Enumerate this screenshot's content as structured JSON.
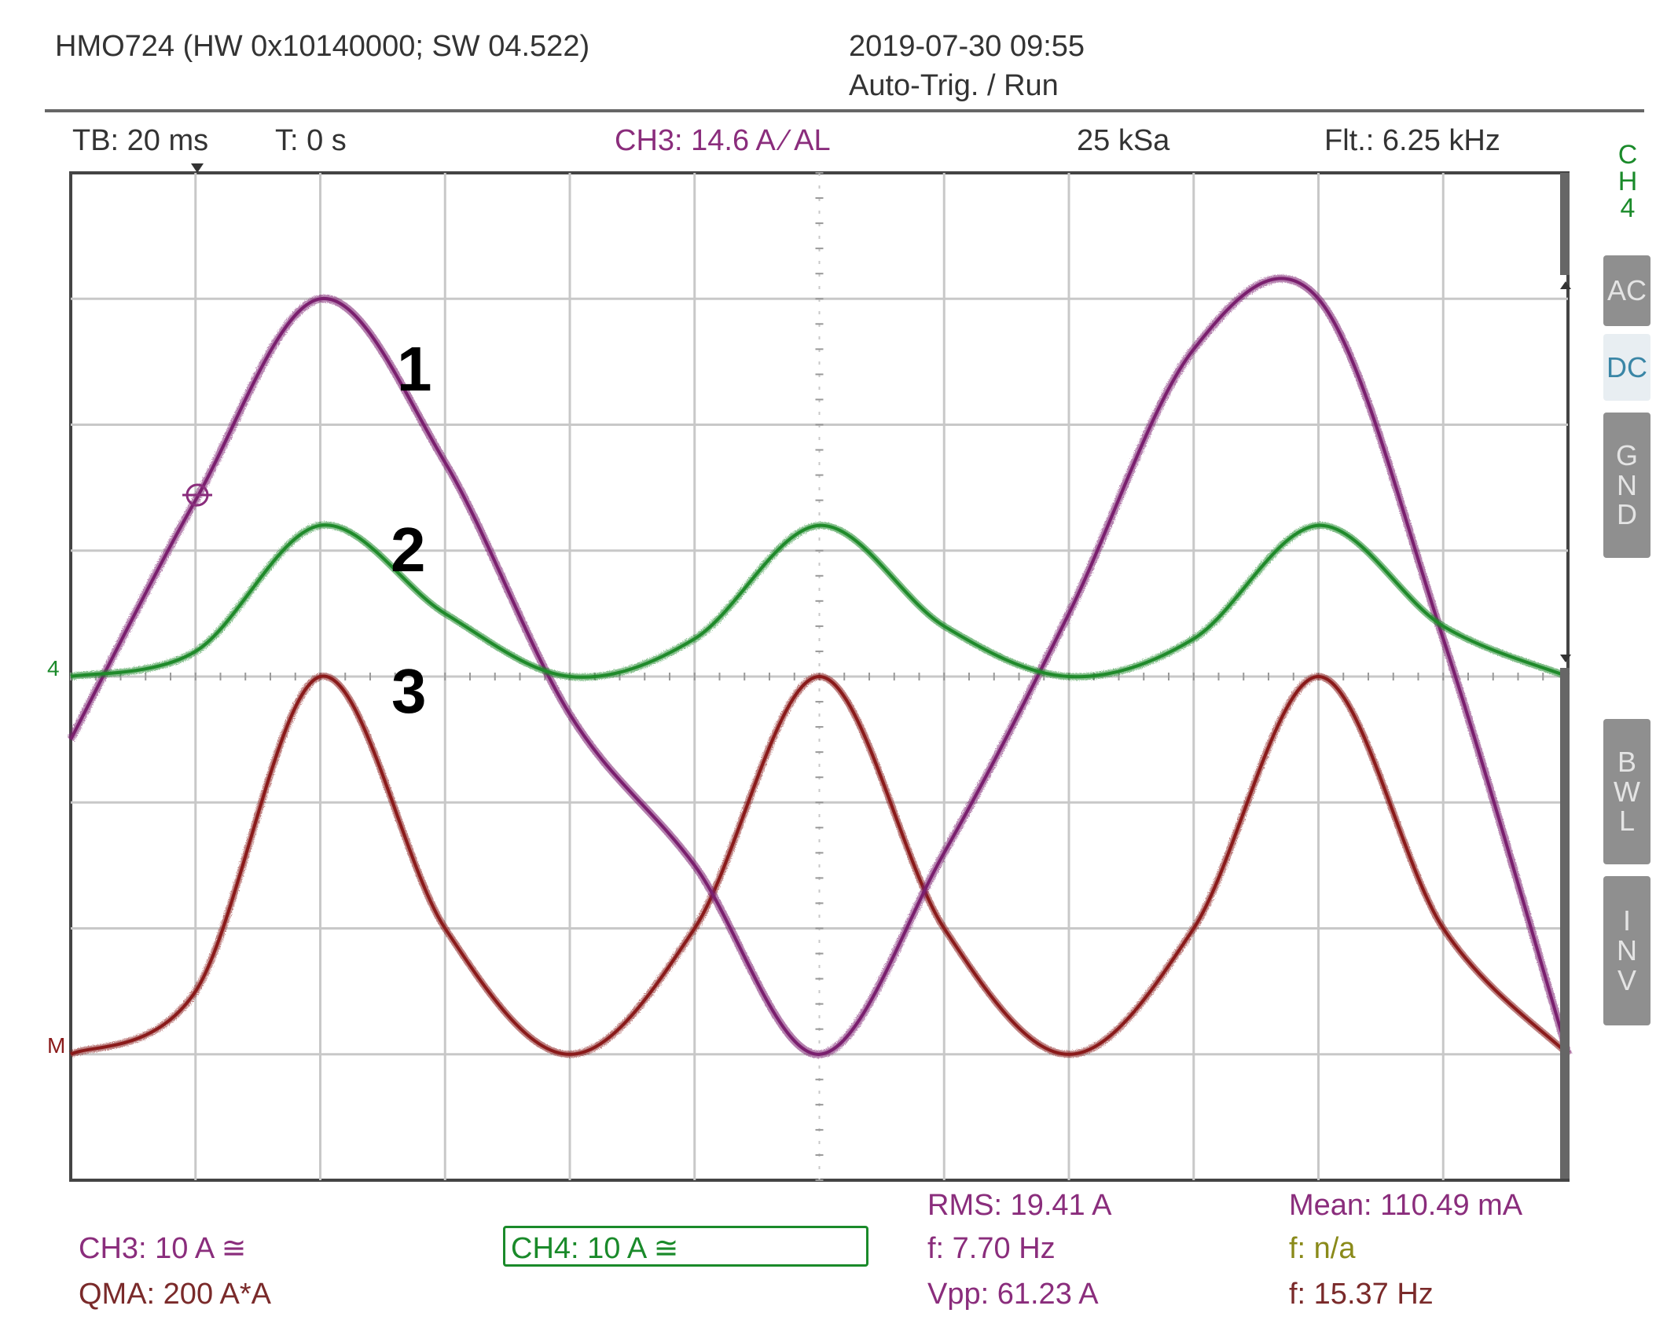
{
  "header": {
    "device": "HMO724 (HW 0x10140000; SW 04.522)",
    "datetime": "2019-07-30 09:55",
    "trigger_mode": "Auto-Trig. / Run"
  },
  "status_bar": {
    "timebase": "TB: 20 ms",
    "trigger_time": "T: 0 s",
    "trigger_source": "CH3: 14.6 A ∕ AL",
    "sample_rate": "25 kSa",
    "filter": "Flt.: 6.25 kHz"
  },
  "side_panel": {
    "channel": [
      "C",
      "H",
      "4"
    ],
    "coupling_ac": "AC",
    "coupling_dc": "DC",
    "gnd": [
      "G",
      "N",
      "D"
    ],
    "bwl": [
      "B",
      "W",
      "L"
    ],
    "inv": [
      "I",
      "N",
      "V"
    ]
  },
  "wave_labels": [
    "1",
    "2",
    "3"
  ],
  "footer": {
    "ch3": "CH3: 10 A ≅",
    "qma": "QMA: 200 A*A",
    "ch4": "CH4: 10 A ≅",
    "rms": "RMS: 19.41 A",
    "f1": "f: 7.70 Hz",
    "vpp": "Vpp: 61.23 A",
    "mean": "Mean: 110.49 mA",
    "f2": "f: n/a",
    "f3": "f: 15.37 Hz"
  },
  "colors": {
    "ch3_trace": "#7a1f6e",
    "ch4_trace": "#1f8a2a",
    "math_trace": "#8a1a1a",
    "grid": "#c8c8c8"
  },
  "chart_data": {
    "type": "line",
    "grid": true,
    "x_divisions": 12,
    "y_divisions": 8,
    "x_unit": "ms",
    "x_per_div": 20,
    "y_per_div": 10,
    "y_unit": "A",
    "series": [
      {
        "name": "CH3",
        "label": "1",
        "color": "#7a1f6e",
        "x": [
          0,
          20,
          40,
          60,
          80,
          100,
          120,
          140,
          160,
          180,
          200,
          220,
          240
        ],
        "y": [
          -5,
          14,
          30,
          17,
          -3,
          -15,
          -30,
          -14,
          5,
          26,
          30,
          3,
          -30
        ]
      },
      {
        "name": "CH4",
        "label": "2",
        "color": "#1f8a2a",
        "x": [
          0,
          20,
          40,
          60,
          80,
          100,
          120,
          140,
          160,
          180,
          200,
          220,
          240
        ],
        "y": [
          0,
          2,
          12,
          5,
          0,
          3,
          12,
          4,
          0,
          3,
          12,
          4,
          0
        ]
      },
      {
        "name": "QMA",
        "label": "3",
        "color": "#8a1a1a",
        "x": [
          0,
          20,
          40,
          60,
          80,
          100,
          120,
          140,
          160,
          180,
          200,
          220,
          240
        ],
        "y": [
          0,
          5,
          30,
          10,
          0,
          10,
          30,
          10,
          0,
          10,
          30,
          10,
          0
        ]
      }
    ]
  }
}
